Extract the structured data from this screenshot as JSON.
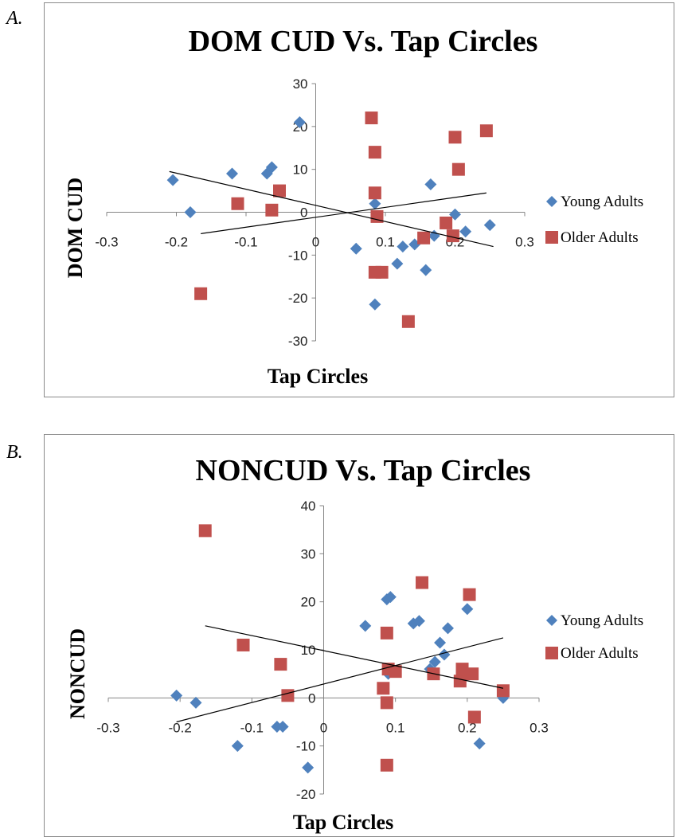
{
  "panels": [
    {
      "letter": "A.",
      "chart_data": {
        "type": "scatter",
        "title": "DOM CUD Vs. Tap Circles",
        "xlabel": "Tap Circles",
        "ylabel": "DOM CUD",
        "xlim": [
          -0.3,
          0.3
        ],
        "ylim": [
          -30,
          30
        ],
        "xticks": [
          -0.3,
          -0.2,
          -0.1,
          0,
          0.1,
          0.2,
          0.3
        ],
        "xtick_labels": [
          "-0.3",
          "-0.2",
          "-0.1",
          "0",
          "0.1",
          "0.2",
          "0.3"
        ],
        "yticks": [
          -30,
          -20,
          -10,
          0,
          10,
          20,
          30
        ],
        "ytick_labels": [
          "-30",
          "-20",
          "-10",
          "0",
          "10",
          "20",
          "30"
        ],
        "grid": false,
        "legend_position": "right",
        "series": [
          {
            "name": "Young Adults",
            "marker": "diamond",
            "color": "#4f81bd",
            "points": [
              [
                -0.205,
                7.5
              ],
              [
                -0.18,
                0
              ],
              [
                -0.12,
                9
              ],
              [
                -0.07,
                9
              ],
              [
                -0.063,
                10.5
              ],
              [
                -0.023,
                21
              ],
              [
                0.058,
                -8.5
              ],
              [
                0.085,
                2
              ],
              [
                0.085,
                -21.5
              ],
              [
                0.117,
                -12
              ],
              [
                0.125,
                -8
              ],
              [
                0.142,
                -7.5
              ],
              [
                0.158,
                -13.5
              ],
              [
                0.165,
                6.5
              ],
              [
                0.17,
                -5.5
              ],
              [
                0.2,
                -0.5
              ],
              [
                0.215,
                -4.5
              ],
              [
                0.25,
                -3
              ]
            ],
            "trendline": [
              [
                -0.21,
                9.5
              ],
              [
                0.255,
                -8.0
              ]
            ]
          },
          {
            "name": "Older Adults",
            "marker": "square",
            "color": "#c0504d",
            "points": [
              [
                -0.165,
                -19
              ],
              [
                -0.112,
                2
              ],
              [
                -0.063,
                0.5
              ],
              [
                -0.052,
                5
              ],
              [
                0.08,
                22
              ],
              [
                0.085,
                14
              ],
              [
                0.085,
                4.5
              ],
              [
                0.085,
                -14
              ],
              [
                0.088,
                -1
              ],
              [
                0.095,
                -14
              ],
              [
                0.133,
                -25.5
              ],
              [
                0.155,
                -6
              ],
              [
                0.187,
                -2.5
              ],
              [
                0.197,
                -5.5
              ],
              [
                0.2,
                17.5
              ],
              [
                0.205,
                10
              ],
              [
                0.245,
                19
              ]
            ],
            "trendline": [
              [
                -0.165,
                -5.0
              ],
              [
                0.245,
                4.5
              ]
            ]
          }
        ]
      }
    },
    {
      "letter": "B.",
      "chart_data": {
        "type": "scatter",
        "title": "NONCUD Vs. Tap Circles",
        "xlabel": "Tap Circles",
        "ylabel": "NONCUD",
        "xlim": [
          -0.3,
          0.3
        ],
        "ylim": [
          -20,
          40
        ],
        "xticks": [
          -0.3,
          -0.2,
          -0.1,
          0,
          0.1,
          0.2,
          0.3
        ],
        "xtick_labels": [
          "-0.3",
          "-0.2",
          "-0.1",
          "0",
          "0.1",
          "0.2",
          "0.3"
        ],
        "yticks": [
          -20,
          -10,
          0,
          10,
          20,
          30,
          40
        ],
        "ytick_labels": [
          "-20",
          "-10",
          "0",
          "10",
          "20",
          "30",
          "40"
        ],
        "grid": false,
        "legend_position": "right",
        "series": [
          {
            "name": "Young Adults",
            "marker": "diamond",
            "color": "#4f81bd",
            "points": [
              [
                -0.205,
                0.5
              ],
              [
                -0.178,
                -1
              ],
              [
                -0.12,
                -10
              ],
              [
                -0.065,
                -6
              ],
              [
                -0.057,
                -6
              ],
              [
                -0.022,
                -14.5
              ],
              [
                0.058,
                15
              ],
              [
                0.088,
                20.5
              ],
              [
                0.093,
                21
              ],
              [
                0.09,
                5
              ],
              [
                0.125,
                15.5
              ],
              [
                0.133,
                16
              ],
              [
                0.148,
                6
              ],
              [
                0.155,
                7.5
              ],
              [
                0.162,
                11.5
              ],
              [
                0.168,
                9
              ],
              [
                0.173,
                14.5
              ],
              [
                0.2,
                18.5
              ],
              [
                0.217,
                -9.5
              ],
              [
                0.25,
                0
              ]
            ],
            "trendline": [
              [
                -0.205,
                -5.0
              ],
              [
                0.25,
                12.5
              ]
            ]
          },
          {
            "name": "Older Adults",
            "marker": "square",
            "color": "#c0504d",
            "points": [
              [
                -0.165,
                34.8
              ],
              [
                -0.112,
                11
              ],
              [
                -0.06,
                7
              ],
              [
                -0.05,
                0.5
              ],
              [
                0.083,
                2
              ],
              [
                0.088,
                13.5
              ],
              [
                0.088,
                -1
              ],
              [
                0.088,
                -14
              ],
              [
                0.09,
                6
              ],
              [
                0.1,
                5.5
              ],
              [
                0.137,
                24
              ],
              [
                0.153,
                5
              ],
              [
                0.19,
                3.5
              ],
              [
                0.193,
                6
              ],
              [
                0.203,
                21.5
              ],
              [
                0.207,
                5
              ],
              [
                0.21,
                -4
              ],
              [
                0.25,
                1.5
              ]
            ],
            "trendline": [
              [
                -0.165,
                15.0
              ],
              [
                0.25,
                2.0
              ]
            ]
          }
        ]
      }
    }
  ]
}
